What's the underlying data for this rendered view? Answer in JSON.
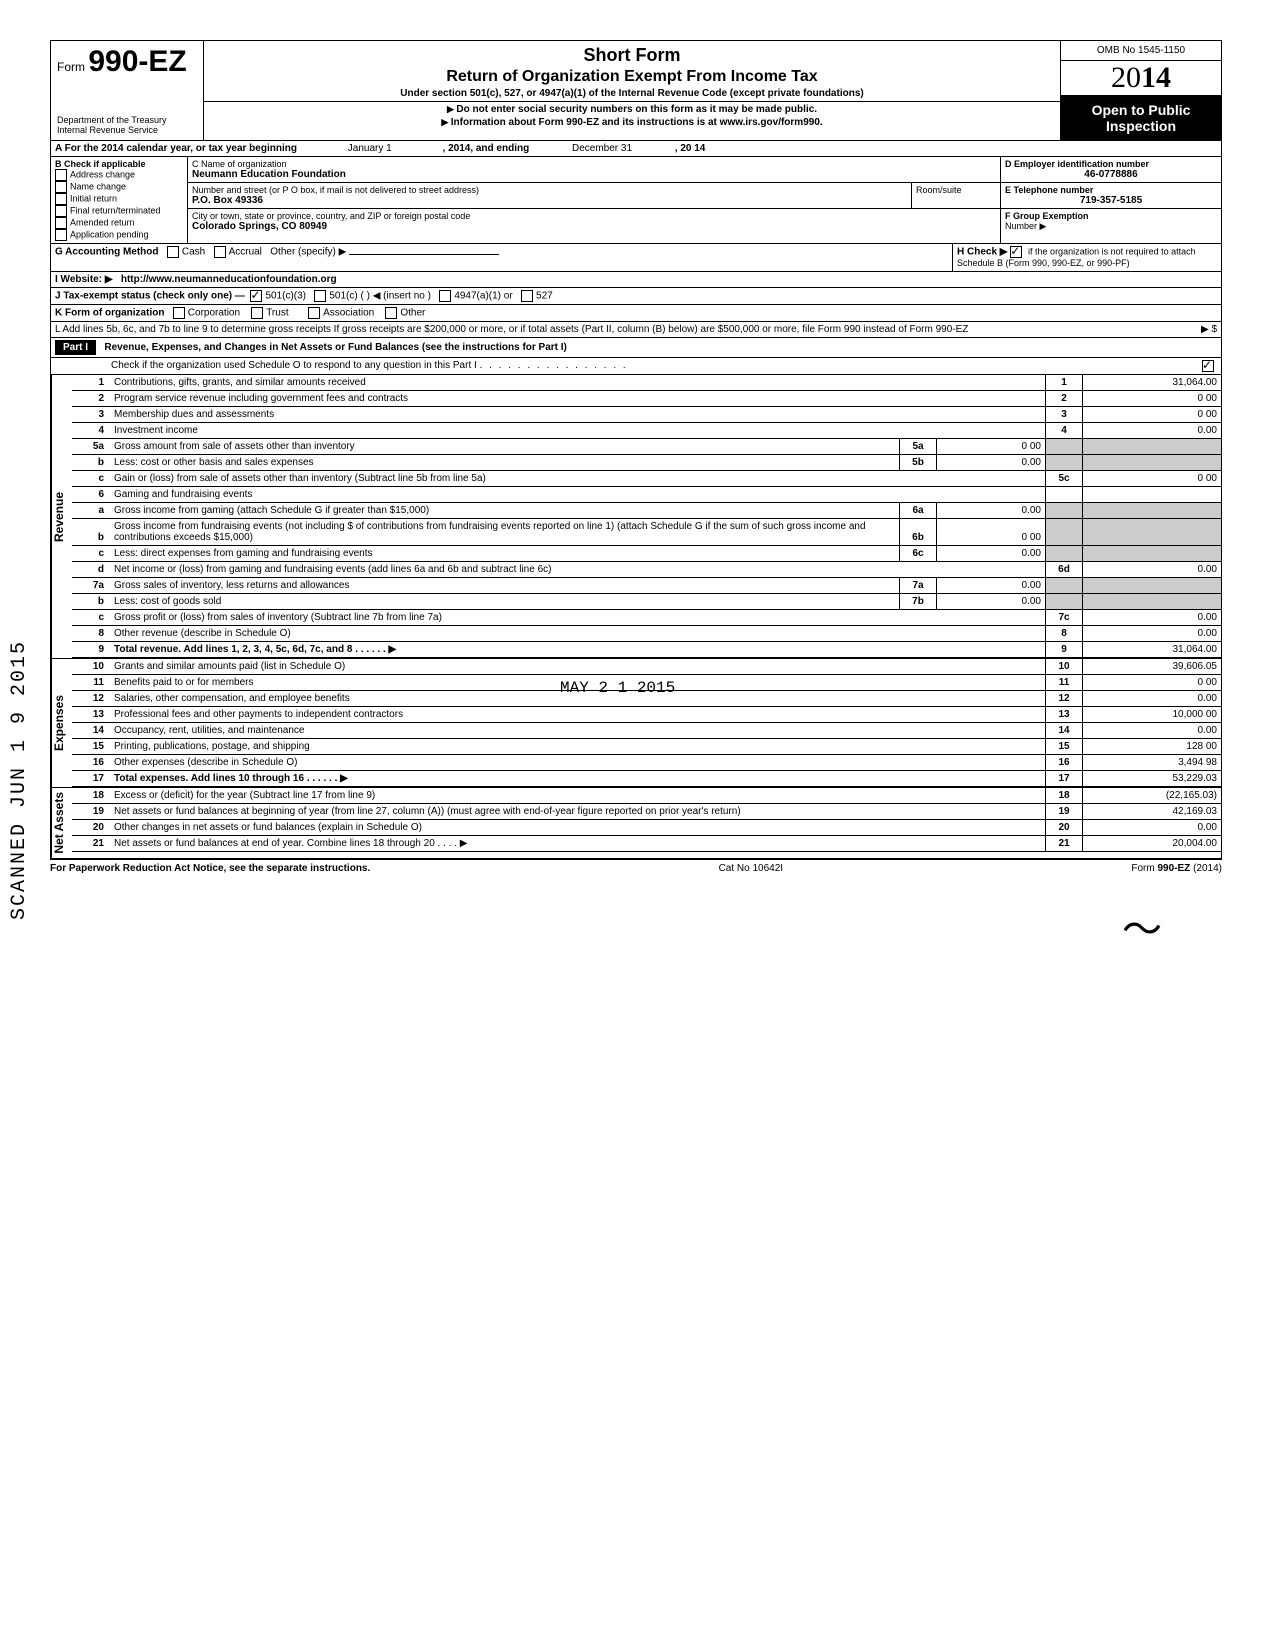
{
  "header": {
    "form_prefix": "Form",
    "form_number": "990-EZ",
    "title1": "Short Form",
    "title2": "Return of Organization Exempt From Income Tax",
    "subtitle": "Under section 501(c), 527, or 4947(a)(1) of the Internal Revenue Code (except private foundations)",
    "note1": "Do not enter social security numbers on this form as it may be made public.",
    "note2": "Information about Form 990-EZ and its instructions is at www.irs.gov/form990.",
    "dept": "Department of the Treasury\nInternal Revenue Service",
    "omb": "OMB No 1545-1150",
    "year_prefix": "20",
    "year_bold": "14",
    "open_public1": "Open to Public",
    "open_public2": "Inspection"
  },
  "lineA": {
    "label": "A  For the 2014 calendar year, or tax year beginning",
    "begin": "January 1",
    "mid": ", 2014, and ending",
    "end": "December 31",
    "year": ", 20   14"
  },
  "boxB": {
    "label": "B  Check if applicable",
    "items": [
      "Address change",
      "Name change",
      "Initial return",
      "Final return/terminated",
      "Amended return",
      "Application pending"
    ]
  },
  "boxC": {
    "label": "C  Name of organization",
    "name": "Neumann Education Foundation",
    "street_label": "Number and street (or P O box, if mail is not delivered to street address)",
    "room_label": "Room/suite",
    "street": "P.O. Box 49336",
    "city_label": "City or town, state or province, country, and ZIP or foreign postal code",
    "city": "Colorado Springs, CO 80949"
  },
  "boxD": {
    "label": "D  Employer identification number",
    "value": "46-0778886"
  },
  "boxE": {
    "label": "E  Telephone number",
    "value": "719-357-5185"
  },
  "boxF": {
    "label": "F  Group Exemption",
    "label2": "Number ▶",
    "value": ""
  },
  "lineG": {
    "label": "G  Accounting Method",
    "opts": [
      "Cash",
      "Accrual"
    ],
    "other": "Other (specify) ▶"
  },
  "lineH": {
    "label": "H  Check ▶",
    "text": "if the organization is not required to attach Schedule B (Form 990, 990-EZ, or 990-PF)",
    "checked": true
  },
  "lineI": {
    "label": "I  Website: ▶",
    "value": "http://www.neumanneducationfoundation.org"
  },
  "lineJ": {
    "label": "J  Tax-exempt status (check only one) —",
    "opts": [
      "501(c)(3)",
      "501(c) (          ) ◀ (insert no )",
      "4947(a)(1) or",
      "527"
    ],
    "checked": 0
  },
  "lineK": {
    "label": "K  Form of organization",
    "opts": [
      "Corporation",
      "Trust",
      "Association",
      "Other"
    ]
  },
  "lineL": "L  Add lines 5b, 6c, and 7b to line 9 to determine gross receipts  If gross receipts are $200,000 or more, or if total assets (Part II, column (B) below) are $500,000 or more, file Form 990 instead of Form 990-EZ",
  "lineL_arrow": "▶    $",
  "partI": {
    "label": "Part I",
    "title": "Revenue, Expenses, and Changes in Net Assets or Fund Balances (see the instructions for Part I)",
    "check_line": "Check if the organization used Schedule O to respond to any question in this Part I",
    "checked": true
  },
  "revenue_lines": [
    {
      "n": "1",
      "desc": "Contributions, gifts, grants, and similar amounts received",
      "num": "1",
      "amt": "31,064.00"
    },
    {
      "n": "2",
      "desc": "Program service revenue including government fees and contracts",
      "num": "2",
      "amt": "0 00"
    },
    {
      "n": "3",
      "desc": "Membership dues and assessments",
      "num": "3",
      "amt": "0 00"
    },
    {
      "n": "4",
      "desc": "Investment income",
      "num": "4",
      "amt": "0.00"
    }
  ],
  "line5a": {
    "n": "5a",
    "desc": "Gross amount from sale of assets other than inventory",
    "subnum": "5a",
    "subamt": "0 00"
  },
  "line5b": {
    "n": "b",
    "desc": "Less: cost or other basis and sales expenses",
    "subnum": "5b",
    "subamt": "0.00"
  },
  "line5c": {
    "n": "c",
    "desc": "Gain or (loss) from sale of assets other than inventory (Subtract line 5b from line 5a)",
    "num": "5c",
    "amt": "0 00"
  },
  "line6": {
    "n": "6",
    "desc": "Gaming and fundraising events"
  },
  "line6a": {
    "n": "a",
    "desc": "Gross income from gaming (attach Schedule G if greater than $15,000)",
    "subnum": "6a",
    "subamt": "0.00"
  },
  "line6b": {
    "n": "b",
    "desc": "Gross income from fundraising events (not including  $                     of contributions from fundraising events reported on line 1) (attach Schedule G if the sum of such gross income and contributions exceeds $15,000)",
    "subnum": "6b",
    "subamt": "0 00"
  },
  "line6c": {
    "n": "c",
    "desc": "Less: direct expenses from gaming and fundraising events",
    "subnum": "6c",
    "subamt": "0.00"
  },
  "line6d": {
    "n": "d",
    "desc": "Net income or (loss) from gaming and fundraising events (add lines 6a and 6b and subtract line 6c)",
    "num": "6d",
    "amt": "0.00"
  },
  "line7a": {
    "n": "7a",
    "desc": "Gross sales of inventory, less returns and allowances",
    "subnum": "7a",
    "subamt": "0.00"
  },
  "line7b": {
    "n": "b",
    "desc": "Less: cost of goods sold",
    "subnum": "7b",
    "subamt": "0.00"
  },
  "line7c": {
    "n": "c",
    "desc": "Gross profit or (loss) from sales of inventory (Subtract line 7b from line 7a)",
    "num": "7c",
    "amt": "0.00"
  },
  "line8": {
    "n": "8",
    "desc": "Other revenue (describe in Schedule O)",
    "num": "8",
    "amt": "0.00"
  },
  "line9": {
    "n": "9",
    "desc": "Total revenue. Add lines 1, 2, 3, 4, 5c, 6d, 7c, and 8",
    "num": "9",
    "amt": "31,064.00",
    "bold": true
  },
  "expense_lines": [
    {
      "n": "10",
      "desc": "Grants and similar amounts paid (list in Schedule O)",
      "num": "10",
      "amt": "39,606.05"
    },
    {
      "n": "11",
      "desc": "Benefits paid to or for members",
      "num": "11",
      "amt": "0 00"
    },
    {
      "n": "12",
      "desc": "Salaries, other compensation, and employee benefits",
      "num": "12",
      "amt": "0.00"
    },
    {
      "n": "13",
      "desc": "Professional fees and other payments to independent contractors",
      "num": "13",
      "amt": "10,000 00"
    },
    {
      "n": "14",
      "desc": "Occupancy, rent, utilities, and maintenance",
      "num": "14",
      "amt": "0.00"
    },
    {
      "n": "15",
      "desc": "Printing, publications, postage, and shipping",
      "num": "15",
      "amt": "128 00"
    },
    {
      "n": "16",
      "desc": "Other expenses (describe in Schedule O)",
      "num": "16",
      "amt": "3,494 98"
    },
    {
      "n": "17",
      "desc": "Total expenses. Add lines 10 through 16",
      "num": "17",
      "amt": "53,229.03",
      "bold": true
    }
  ],
  "netasset_lines": [
    {
      "n": "18",
      "desc": "Excess or (deficit) for the year (Subtract line 17 from line 9)",
      "num": "18",
      "amt": "(22,165.03)"
    },
    {
      "n": "19",
      "desc": "Net assets or fund balances at beginning of year (from line 27, column (A)) (must agree with end-of-year figure reported on prior year's return)",
      "num": "19",
      "amt": "42,169.03"
    },
    {
      "n": "20",
      "desc": "Other changes in net assets or fund balances (explain in Schedule O)",
      "num": "20",
      "amt": "0.00"
    },
    {
      "n": "21",
      "desc": "Net assets or fund balances at end of year. Combine lines 18 through 20",
      "num": "21",
      "amt": "20,004.00"
    }
  ],
  "side_labels": {
    "revenue": "Revenue",
    "expenses": "Expenses",
    "netassets": "Net Assets"
  },
  "footer": {
    "left": "For Paperwork Reduction Act Notice, see the separate instructions.",
    "mid": "Cat No 10642I",
    "right": "Form 990-EZ (2014)"
  },
  "scanned_stamp": "SCANNED JUN 1 9 2015",
  "recv_stamp": "MAY 2 1 2015"
}
